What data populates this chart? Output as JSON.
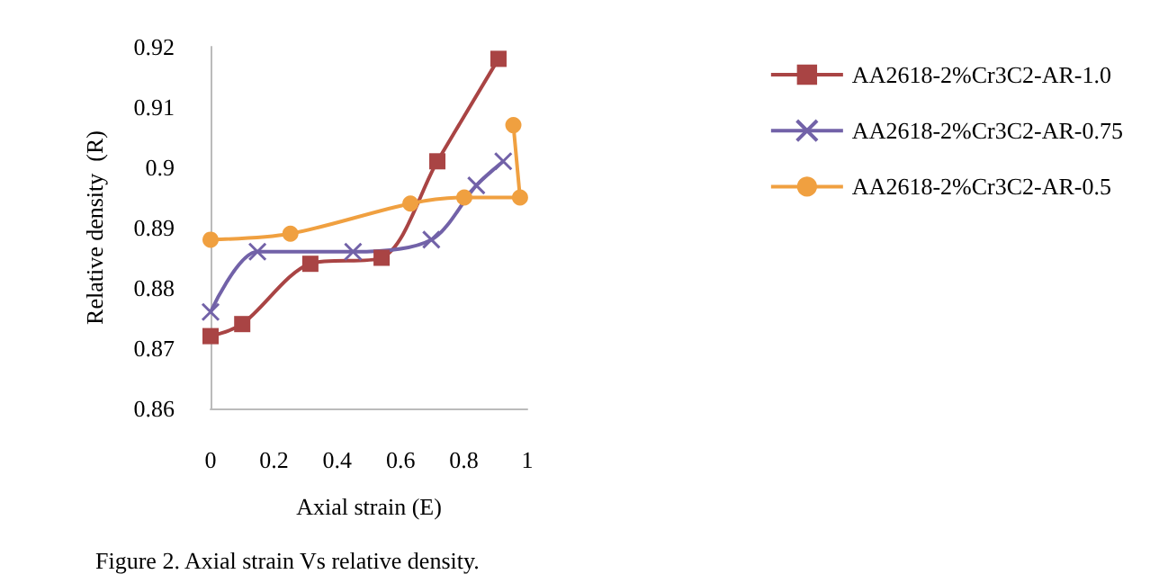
{
  "chart_data": {
    "type": "line",
    "title": "Figure 2. Axial strain Vs relative density.",
    "xlabel": "Axial strain (E)",
    "ylabel": "Relative density  (R)",
    "xlim": [
      0,
      1
    ],
    "xticks": [
      0,
      0.2,
      0.4,
      0.6,
      0.8,
      1
    ],
    "ylim": [
      0.86,
      0.92
    ],
    "yticks": [
      0.86,
      0.87,
      0.88,
      0.89,
      0.9,
      0.91,
      0.92
    ],
    "grid": false,
    "legend": "right",
    "series": [
      {
        "name": "AA2618-2%Cr3C2-AR-1.0",
        "color": "#a94444",
        "marker": "square",
        "x": [
          0,
          0.1,
          0.315,
          0.54,
          0.716,
          0.909
        ],
        "values": [
          0.872,
          0.874,
          0.884,
          0.885,
          0.901,
          0.918
        ]
      },
      {
        "name": "AA2618-2%Cr3C2-AR-0.75",
        "color": "#7262a8",
        "marker": "cross",
        "x": [
          0,
          0.148,
          0.45,
          0.697,
          0.839,
          0.924
        ],
        "values": [
          0.876,
          0.886,
          0.886,
          0.888,
          0.897,
          0.901
        ]
      },
      {
        "name": "AA2618-2%Cr3C2-AR-0.5",
        "color": "#f0a040",
        "marker": "circle",
        "x": [
          0,
          0.252,
          0.631,
          0.801,
          0.977,
          0.956
        ],
        "values": [
          0.888,
          0.889,
          0.894,
          0.895,
          0.895,
          0.907
        ]
      }
    ]
  }
}
